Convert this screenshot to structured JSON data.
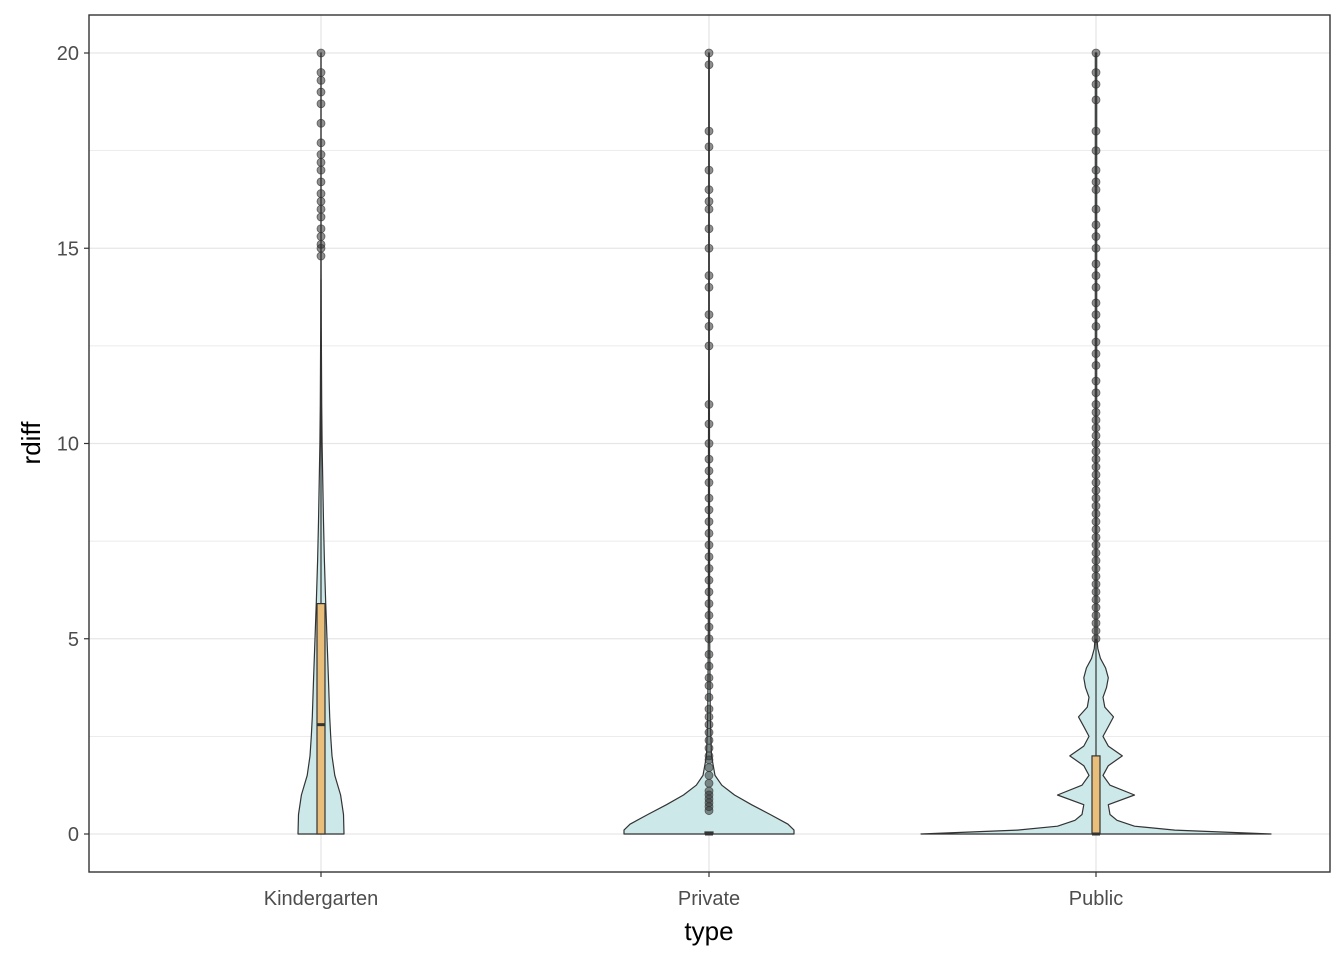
{
  "chart_data": {
    "type": "violin",
    "xlabel": "type",
    "ylabel": "rdiff",
    "categories": [
      "Kindergarten",
      "Private",
      "Public"
    ],
    "ylim": [
      -1,
      21
    ],
    "yticks": [
      0,
      5,
      10,
      15,
      20
    ],
    "grid": true,
    "legend": "none",
    "colors": {
      "violin_fill": "#cde8e8",
      "violin_stroke": "#333333",
      "box_fill": "#e8be7a",
      "box_stroke": "#333333",
      "point": "#333333",
      "grid": "#e6e6e6",
      "panel_border": "#333333"
    },
    "series": [
      {
        "category": "Kindergarten",
        "box": {
          "q1": 0,
          "median": 2.8,
          "q3": 5.9,
          "whisker_low": 0,
          "whisker_high": 14.2
        },
        "density": [
          [
            0,
            1.0
          ],
          [
            0.5,
            0.98
          ],
          [
            1.0,
            0.85
          ],
          [
            1.5,
            0.6
          ],
          [
            2.0,
            0.48
          ],
          [
            2.5,
            0.42
          ],
          [
            3,
            0.38
          ],
          [
            4,
            0.32
          ],
          [
            5,
            0.26
          ],
          [
            6,
            0.2
          ],
          [
            7,
            0.15
          ],
          [
            8,
            0.11
          ],
          [
            9,
            0.08
          ],
          [
            10,
            0.05
          ],
          [
            11,
            0.03
          ],
          [
            12,
            0.02
          ],
          [
            13,
            0.012
          ],
          [
            14,
            0.008
          ],
          [
            15,
            0.006
          ],
          [
            17,
            0.005
          ],
          [
            20,
            0.004
          ]
        ],
        "outliers": [
          14.8,
          15,
          15.1,
          15.3,
          15.5,
          15.8,
          16,
          16.2,
          16.4,
          16.7,
          17,
          17.2,
          17.4,
          17.7,
          18.2,
          18.7,
          19,
          19.3,
          19.5,
          20
        ]
      },
      {
        "category": "Private",
        "box": {
          "q1": 0,
          "median": 0,
          "q3": 0,
          "whisker_low": 0,
          "whisker_high": 0
        },
        "density": [
          [
            0,
            1.0
          ],
          [
            0.1,
            1.0
          ],
          [
            0.25,
            0.93
          ],
          [
            0.5,
            0.72
          ],
          [
            0.75,
            0.5
          ],
          [
            1.0,
            0.3
          ],
          [
            1.25,
            0.15
          ],
          [
            1.5,
            0.07
          ],
          [
            2,
            0.03
          ],
          [
            3,
            0.015
          ],
          [
            5,
            0.008
          ],
          [
            8,
            0.006
          ],
          [
            10,
            0.006
          ],
          [
            11,
            0.005
          ],
          [
            12,
            0.004
          ],
          [
            15,
            0.004
          ],
          [
            20,
            0.004
          ]
        ],
        "outliers": [
          0.6,
          0.7,
          0.8,
          0.9,
          1,
          1.1,
          1.3,
          1.5,
          1.7,
          1.9,
          2,
          2.2,
          2.4,
          2.6,
          2.8,
          3,
          3.2,
          3.5,
          3.8,
          4,
          4.3,
          4.6,
          5,
          5.3,
          5.6,
          5.9,
          6.2,
          6.5,
          6.8,
          7.1,
          7.4,
          7.7,
          8,
          8.3,
          8.6,
          9,
          9.3,
          9.6,
          10,
          10.5,
          11,
          12.5,
          13,
          13.3,
          14,
          14.3,
          15,
          15.5,
          16,
          16.2,
          16.5,
          17,
          17.6,
          18,
          19.7,
          20
        ]
      },
      {
        "category": "Public",
        "box": {
          "q1": 0,
          "median": 0,
          "q3": 2.0,
          "whisker_low": 0,
          "whisker_high": 5.0
        },
        "density": [
          [
            0,
            1.0
          ],
          [
            0.1,
            0.45
          ],
          [
            0.2,
            0.22
          ],
          [
            0.35,
            0.12
          ],
          [
            0.5,
            0.08
          ],
          [
            0.75,
            0.07
          ],
          [
            1.0,
            0.22
          ],
          [
            1.25,
            0.08
          ],
          [
            1.5,
            0.04
          ],
          [
            1.75,
            0.07
          ],
          [
            2.0,
            0.15
          ],
          [
            2.25,
            0.07
          ],
          [
            2.5,
            0.04
          ],
          [
            2.75,
            0.07
          ],
          [
            3.0,
            0.1
          ],
          [
            3.25,
            0.05
          ],
          [
            3.5,
            0.04
          ],
          [
            3.75,
            0.06
          ],
          [
            4.0,
            0.07
          ],
          [
            4.25,
            0.055
          ],
          [
            4.5,
            0.025
          ],
          [
            4.75,
            0.01
          ],
          [
            5.0,
            0.006
          ],
          [
            8,
            0.004
          ],
          [
            12,
            0.004
          ],
          [
            16,
            0.004
          ],
          [
            20,
            0.004
          ]
        ],
        "outliers": [
          5,
          5.2,
          5.4,
          5.6,
          5.8,
          6,
          6.2,
          6.4,
          6.6,
          6.8,
          7,
          7.2,
          7.4,
          7.6,
          7.8,
          8,
          8.2,
          8.4,
          8.6,
          8.8,
          9,
          9.2,
          9.4,
          9.6,
          9.8,
          10,
          10.2,
          10.4,
          10.6,
          10.8,
          11,
          11.3,
          11.6,
          12,
          12.3,
          12.6,
          13,
          13.3,
          13.6,
          14,
          14.3,
          14.6,
          15,
          15.3,
          15.6,
          16,
          16.5,
          16.7,
          17,
          17.5,
          18,
          18.8,
          19.2,
          19.5,
          20
        ]
      }
    ]
  }
}
